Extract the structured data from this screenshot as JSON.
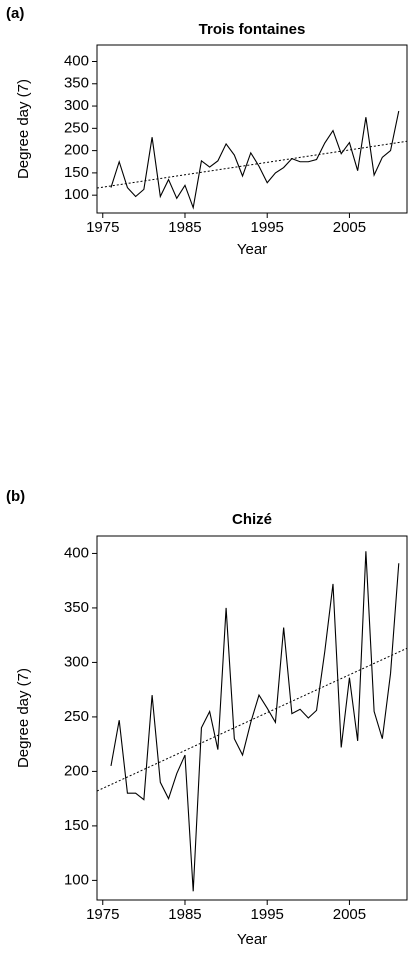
{
  "chart_data": [
    {
      "type": "line",
      "panel_label": "(a)",
      "title": "Trois fontaines",
      "x_label": "Year",
      "y_label": "Degree day (7)",
      "x": [
        1976,
        1977,
        1978,
        1979,
        1980,
        1981,
        1982,
        1983,
        1984,
        1985,
        1986,
        1987,
        1988,
        1989,
        1990,
        1991,
        1992,
        1993,
        1994,
        1995,
        1996,
        1997,
        1998,
        1999,
        2000,
        2001,
        2002,
        2003,
        2004,
        2005,
        2006,
        2007,
        2008,
        2009,
        2010,
        2011
      ],
      "values": [
        117,
        175,
        117,
        97,
        113,
        230,
        97,
        135,
        93,
        122,
        72,
        177,
        163,
        177,
        215,
        190,
        143,
        195,
        165,
        128,
        150,
        162,
        182,
        175,
        175,
        180,
        217,
        245,
        193,
        218,
        155,
        275,
        145,
        185,
        200,
        289
      ],
      "color": "#000000",
      "trend": {
        "x": [
          1974.3,
          2012
        ],
        "values": [
          116,
          221
        ],
        "color": "#000000"
      },
      "xlim": [
        1974.3,
        2012
      ],
      "xticks": [
        1975,
        1985,
        1995,
        2005
      ],
      "ylim": [
        60,
        437
      ],
      "yticks": [
        100,
        150,
        200,
        250,
        300,
        350,
        400
      ]
    },
    {
      "type": "line",
      "panel_label": "(b)",
      "title": "Chizé",
      "x_label": "Year",
      "y_label": "Degree day (7)",
      "x": [
        1976,
        1977,
        1978,
        1979,
        1980,
        1981,
        1982,
        1983,
        1984,
        1985,
        1986,
        1987,
        1988,
        1989,
        1990,
        1991,
        1992,
        1993,
        1994,
        1995,
        1996,
        1997,
        1998,
        1999,
        2000,
        2001,
        2002,
        2003,
        2004,
        2005,
        2006,
        2007,
        2008,
        2009,
        2010,
        2011
      ],
      "values": [
        205,
        247,
        180,
        180,
        174,
        270,
        190,
        175,
        198,
        215,
        90,
        240,
        255,
        220,
        350,
        230,
        215,
        245,
        270,
        258,
        245,
        332,
        253,
        257,
        249,
        256,
        310,
        372,
        222,
        286,
        228,
        402,
        255,
        230,
        290,
        391
      ],
      "color": "#000000",
      "trend": {
        "x": [
          1974.3,
          2012
        ],
        "values": [
          182,
          313
        ],
        "color": "#000000"
      },
      "xlim": [
        1974.3,
        2012
      ],
      "xticks": [
        1975,
        1985,
        1995,
        2005
      ],
      "ylim": [
        82,
        416
      ],
      "yticks": [
        100,
        150,
        200,
        250,
        300,
        350,
        400
      ]
    }
  ]
}
